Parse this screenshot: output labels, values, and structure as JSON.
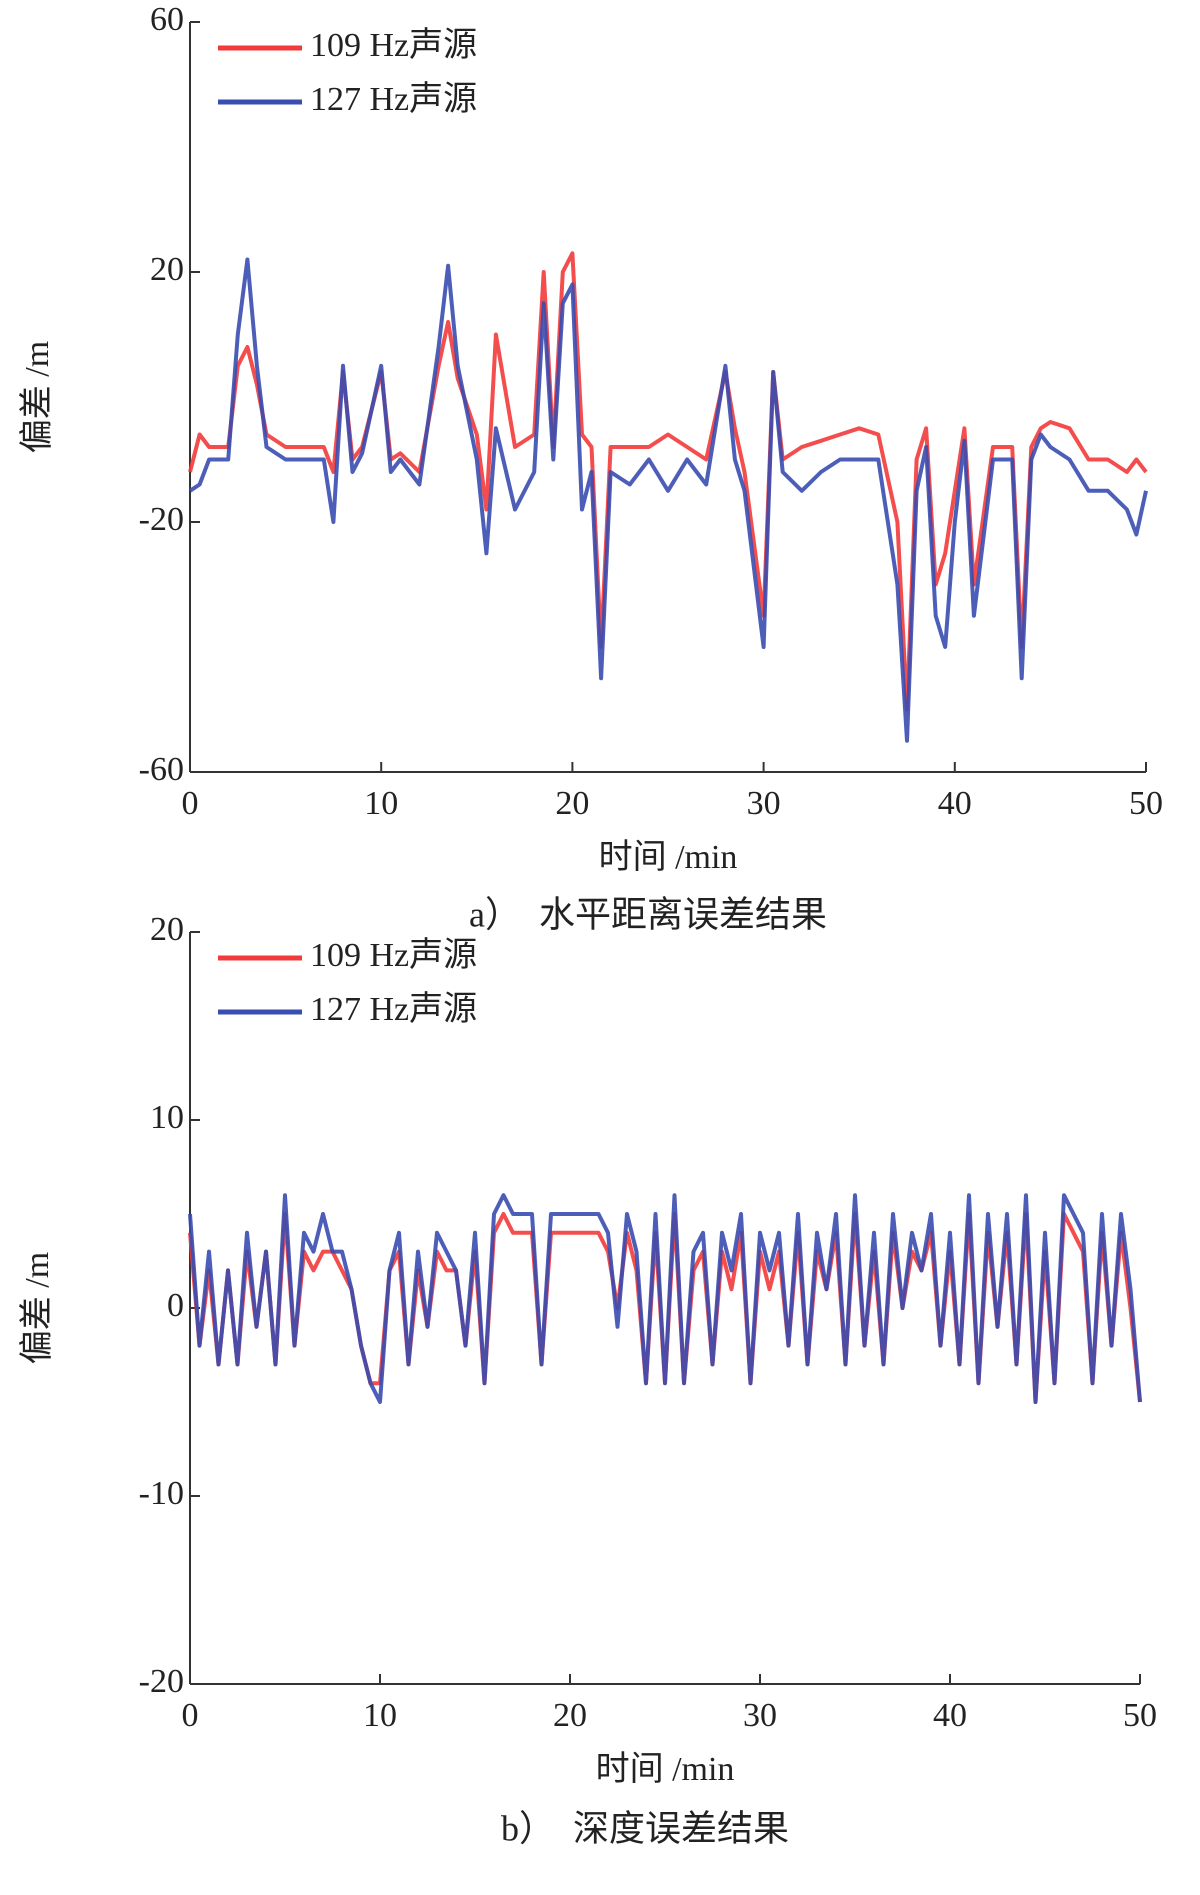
{
  "chart_data": [
    {
      "type": "line",
      "caption": "a）　水平距离误差结果",
      "xlabel": "时间 /min",
      "ylabel": "偏差 /m",
      "xlim": [
        0,
        50
      ],
      "xticks": [
        0,
        10,
        20,
        30,
        40,
        50
      ],
      "ylim": [
        -60,
        60
      ],
      "yticks": [
        -60,
        -20,
        20,
        60
      ],
      "x": [
        0,
        0.5,
        1,
        2,
        2.5,
        3,
        3.5,
        4,
        5,
        6,
        7,
        7.5,
        8,
        8.5,
        9,
        10,
        10.5,
        11,
        12,
        13,
        13.5,
        14,
        15,
        15.5,
        16,
        17,
        18,
        18.5,
        19,
        19.5,
        20,
        20.5,
        21,
        21.5,
        22,
        23,
        24,
        25,
        26,
        27,
        28,
        28.5,
        29,
        30,
        30.5,
        31,
        32,
        33,
        34,
        35,
        36,
        37,
        37.5,
        38,
        38.5,
        39,
        39.5,
        40,
        40.5,
        41,
        42,
        43,
        43.5,
        44,
        44.5,
        45,
        46,
        47,
        48,
        49,
        49.5,
        50
      ],
      "series": [
        {
          "name": "109 Hz声源",
          "color": "#f23a3a",
          "values": [
            -12,
            -6,
            -8,
            -8,
            5,
            8,
            2,
            -6,
            -8,
            -8,
            -8,
            -12,
            4,
            -10,
            -8,
            4,
            -10,
            -9,
            -12,
            5,
            12,
            3,
            -6,
            -18,
            10,
            -8,
            -6,
            20,
            -8,
            20,
            23,
            -6,
            -8,
            -40,
            -8,
            -8,
            -8,
            -6,
            -8,
            -10,
            4,
            -5,
            -12,
            -35,
            4,
            -10,
            -8,
            -7,
            -6,
            -5,
            -6,
            -20,
            -50,
            -10,
            -5,
            -30,
            -25,
            -15,
            -5,
            -30,
            -8,
            -8,
            -40,
            -8,
            -5,
            -4,
            -5,
            -10,
            -10,
            -12,
            -10,
            -12
          ]
        },
        {
          "name": "127 Hz声源",
          "color": "#3a4db0",
          "values": [
            -15,
            -14,
            -10,
            -10,
            10,
            22,
            5,
            -8,
            -10,
            -10,
            -10,
            -20,
            5,
            -12,
            -9,
            5,
            -12,
            -10,
            -14,
            8,
            21,
            5,
            -10,
            -25,
            -5,
            -18,
            -12,
            15,
            -10,
            15,
            18,
            -18,
            -12,
            -45,
            -12,
            -14,
            -10,
            -15,
            -10,
            -14,
            5,
            -10,
            -15,
            -40,
            4,
            -12,
            -15,
            -12,
            -10,
            -10,
            -10,
            -30,
            -55,
            -15,
            -8,
            -35,
            -40,
            -20,
            -7,
            -35,
            -10,
            -10,
            -45,
            -10,
            -6,
            -8,
            -10,
            -15,
            -15,
            -18,
            -22,
            -15
          ]
        }
      ]
    },
    {
      "type": "line",
      "caption": "b）　深度误差结果",
      "xlabel": "时间 /min",
      "ylabel": "偏差 /m",
      "xlim": [
        0,
        50
      ],
      "xticks": [
        0,
        10,
        20,
        30,
        40,
        50
      ],
      "ylim": [
        -20,
        20
      ],
      "yticks": [
        -20,
        -10,
        0,
        10,
        20
      ],
      "x": [
        0,
        0.5,
        1,
        1.5,
        2,
        2.5,
        3,
        3.5,
        4,
        4.5,
        5,
        5.5,
        6,
        6.5,
        7,
        7.5,
        8,
        8.5,
        9,
        9.5,
        10,
        10.5,
        11,
        11.5,
        12,
        12.5,
        13,
        13.5,
        14,
        14.5,
        15,
        15.5,
        16,
        16.5,
        17,
        17.5,
        18,
        18.5,
        19,
        19.5,
        20,
        20.5,
        21,
        21.5,
        22,
        22.5,
        23,
        23.5,
        24,
        24.5,
        25,
        25.5,
        26,
        26.5,
        27,
        27.5,
        28,
        28.5,
        29,
        29.5,
        30,
        30.5,
        31,
        31.5,
        32,
        32.5,
        33,
        33.5,
        34,
        34.5,
        35,
        35.5,
        36,
        36.5,
        37,
        37.5,
        38,
        38.5,
        39,
        39.5,
        40,
        40.5,
        41,
        41.5,
        42,
        42.5,
        43,
        43.5,
        44,
        44.5,
        45,
        45.5,
        46,
        46.5,
        47,
        47.5,
        48,
        48.5,
        49,
        49.5,
        50
      ],
      "series": [
        {
          "name": "109 Hz声源",
          "color": "#f23a3a",
          "values": [
            4,
            -2,
            2,
            -3,
            2,
            -3,
            3,
            -1,
            3,
            -3,
            5,
            -2,
            3,
            2,
            3,
            3,
            2,
            1,
            -2,
            -4,
            -4,
            2,
            3,
            -3,
            2,
            -1,
            3,
            2,
            2,
            -2,
            3,
            -4,
            4,
            5,
            4,
            4,
            4,
            -3,
            4,
            4,
            4,
            4,
            4,
            4,
            3,
            0,
            4,
            2,
            -4,
            4,
            -4,
            5,
            -4,
            2,
            3,
            -3,
            3,
            1,
            4,
            -4,
            3,
            1,
            3,
            -2,
            4,
            -3,
            3,
            1,
            4,
            -3,
            5,
            -2,
            3,
            -3,
            4,
            0,
            3,
            2,
            4,
            -2,
            3,
            -3,
            5,
            -4,
            4,
            -1,
            4,
            -3,
            5,
            -5,
            3,
            -4,
            5,
            4,
            3,
            -4,
            4,
            -2,
            4,
            0,
            -5
          ]
        },
        {
          "name": "127 Hz声源",
          "color": "#3a4db0",
          "values": [
            5,
            -2,
            3,
            -3,
            2,
            -3,
            4,
            -1,
            3,
            -3,
            6,
            -2,
            4,
            3,
            5,
            3,
            3,
            1,
            -2,
            -4,
            -5,
            2,
            4,
            -3,
            3,
            -1,
            4,
            3,
            2,
            -2,
            4,
            -4,
            5,
            6,
            5,
            5,
            5,
            -3,
            5,
            5,
            5,
            5,
            5,
            5,
            4,
            -1,
            5,
            3,
            -4,
            5,
            -4,
            6,
            -4,
            3,
            4,
            -3,
            4,
            2,
            5,
            -4,
            4,
            2,
            4,
            -2,
            5,
            -3,
            4,
            1,
            5,
            -3,
            6,
            -2,
            4,
            -3,
            5,
            0,
            4,
            2,
            5,
            -2,
            4,
            -3,
            6,
            -4,
            5,
            -1,
            5,
            -3,
            6,
            -5,
            4,
            -4,
            6,
            5,
            4,
            -4,
            5,
            -2,
            5,
            1,
            -5
          ]
        }
      ]
    }
  ]
}
